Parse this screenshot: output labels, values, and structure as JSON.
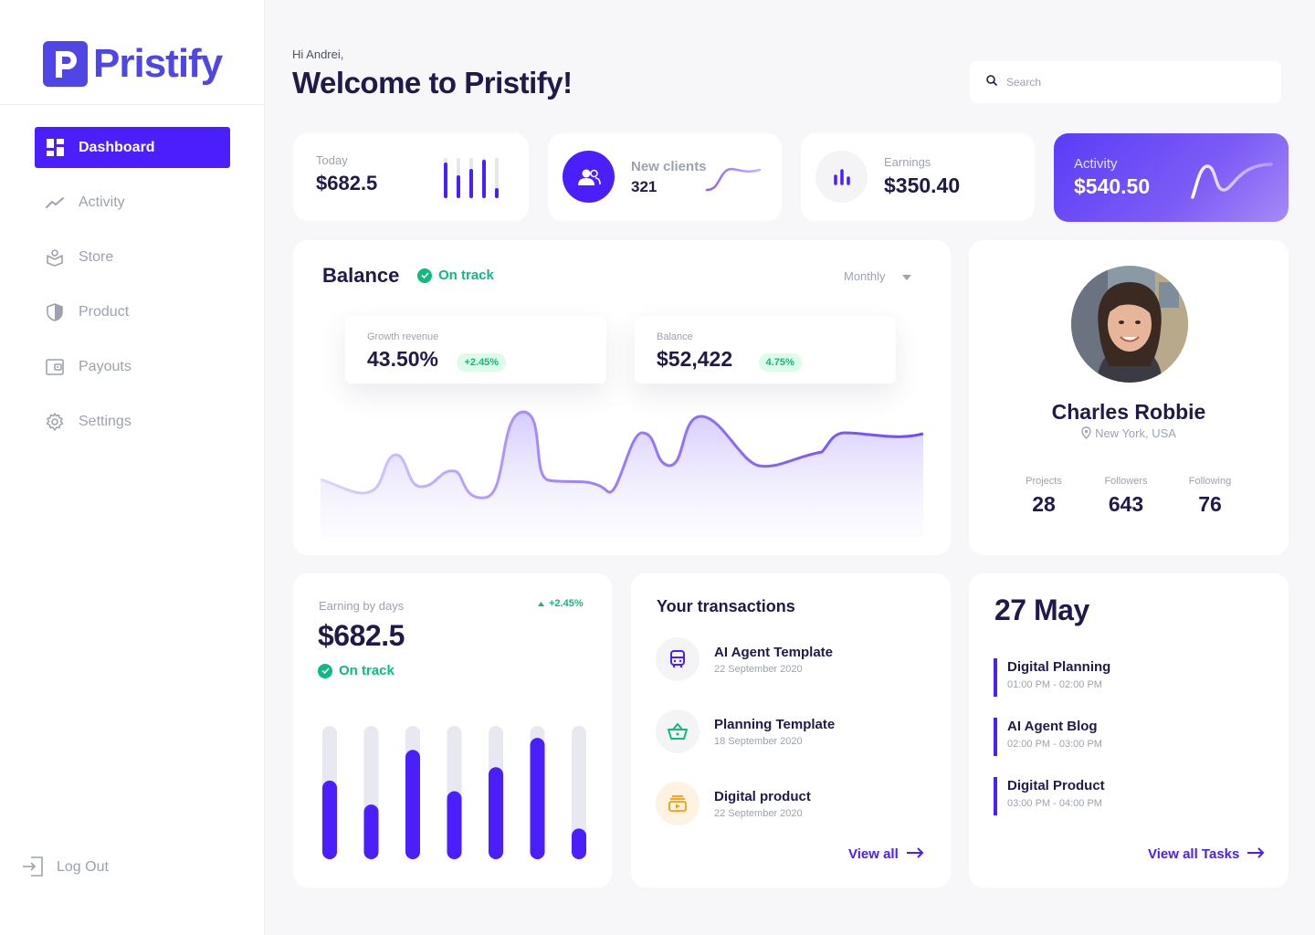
{
  "app": {
    "name": "Pristify"
  },
  "sidebar": {
    "items": [
      {
        "label": "Dashboard",
        "icon": "dashboard-icon",
        "active": true
      },
      {
        "label": "Activity",
        "icon": "activity-icon"
      },
      {
        "label": "Store",
        "icon": "store-icon"
      },
      {
        "label": "Product",
        "icon": "shield-icon"
      },
      {
        "label": "Payouts",
        "icon": "wallet-icon"
      },
      {
        "label": "Settings",
        "icon": "gear-icon"
      }
    ],
    "logout": "Log Out"
  },
  "header": {
    "greeting": "Hi Andrei,",
    "title": "Welcome to Pristify!",
    "search_placeholder": "Search"
  },
  "stats": {
    "today": {
      "label": "Today",
      "value": "$682.5"
    },
    "clients": {
      "label": "New clients",
      "value": "321"
    },
    "earnings": {
      "label": "Earnings",
      "value": "$350.40"
    },
    "activity": {
      "label": "Activity",
      "value": "$540.50"
    }
  },
  "balance": {
    "title": "Balance",
    "status": "On track",
    "period": "Monthly",
    "growth": {
      "label": "Growth revenue",
      "value": "43.50%",
      "change": "+2.45%"
    },
    "balance": {
      "label": "Balance",
      "value": "$52,422",
      "change": "4.75%"
    }
  },
  "profile": {
    "name": "Charles Robbie",
    "location": "New York, USA",
    "projects": {
      "label": "Projects",
      "value": "28"
    },
    "followers": {
      "label": "Followers",
      "value": "643"
    },
    "following": {
      "label": "Following",
      "value": "76"
    }
  },
  "earning": {
    "label": "Earning by days",
    "value": "$682.5",
    "change": "+2.45%",
    "status": "On track",
    "bars": [
      0.59,
      0.41,
      0.82,
      0.51,
      0.69,
      0.91,
      0.23
    ]
  },
  "transactions": {
    "title": "Your transactions",
    "items": [
      {
        "title": "AI Agent Template",
        "date": "22 September 2020",
        "icon": "bus-icon",
        "color": "#4a1ffb"
      },
      {
        "title": "Planning Template",
        "date": "18 September 2020",
        "icon": "basket-icon",
        "color": "#10b981"
      },
      {
        "title": "Digital product",
        "date": "22 September 2020",
        "icon": "media-icon",
        "color": "#f59e0b"
      }
    ],
    "view_all": "View all"
  },
  "tasks": {
    "date": "27 May",
    "items": [
      {
        "title": "Digital Planning",
        "time": "01:00 PM - 02:00 PM"
      },
      {
        "title": "AI Agent Blog",
        "time": "02:00 PM - 03:00 PM"
      },
      {
        "title": "Digital Product",
        "time": "03:00 PM - 04:00 PM"
      }
    ],
    "view_all": "View all Tasks"
  },
  "colors": {
    "accent": "#4a1ffb",
    "success": "#10b981",
    "dark": "#1e1b4b"
  }
}
